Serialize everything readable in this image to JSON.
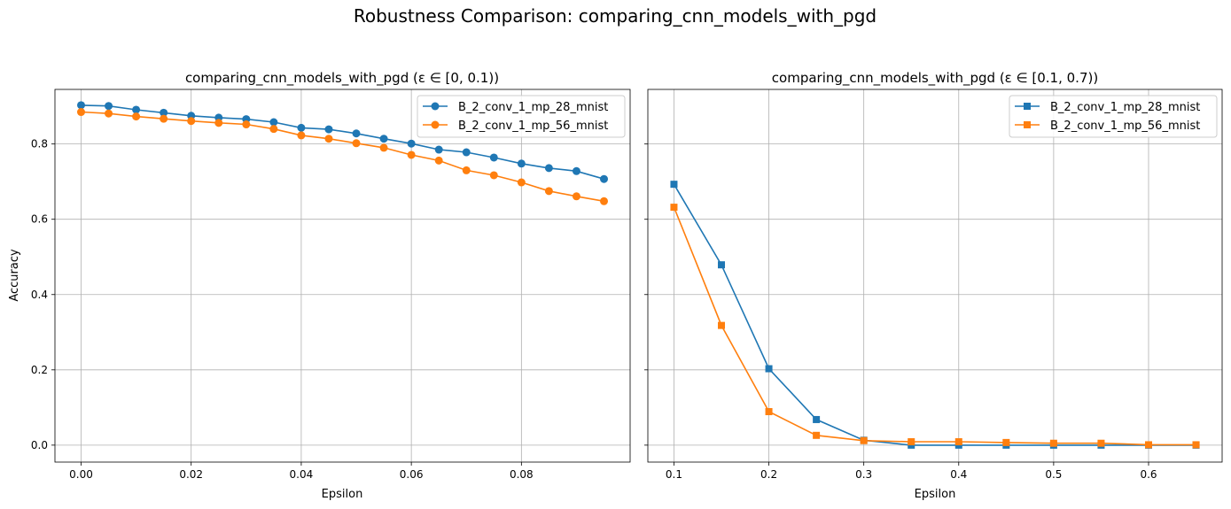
{
  "figure": {
    "title": "Robustness Comparison: comparing_cnn_models_with_pgd"
  },
  "chart_data": [
    {
      "type": "line",
      "title": "comparing_cnn_models_with_pgd (ε ∈ [0, 0.1))",
      "xlabel": "Epsilon",
      "ylabel": "Accuracy",
      "xlim": [
        -0.00475,
        0.09975
      ],
      "ylim": [
        -0.045,
        0.945
      ],
      "xticks": [
        0.0,
        0.02,
        0.04,
        0.06,
        0.08
      ],
      "xtick_labels": [
        "0.00",
        "0.02",
        "0.04",
        "0.06",
        "0.08"
      ],
      "yticks": [
        0.0,
        0.2,
        0.4,
        0.6,
        0.8
      ],
      "ytick_labels": [
        "0.0",
        "0.2",
        "0.4",
        "0.6",
        "0.8"
      ],
      "grid": true,
      "legend": "top-right",
      "marker": "circle",
      "x": [
        0.0,
        0.005,
        0.01,
        0.015,
        0.02,
        0.025,
        0.03,
        0.035,
        0.04,
        0.045,
        0.05,
        0.055,
        0.06,
        0.065,
        0.07,
        0.075,
        0.08,
        0.085,
        0.09,
        0.095
      ],
      "series": [
        {
          "name": "B_2_conv_1_mp_28_mnist",
          "color": "#1f77b4",
          "values": [
            0.903,
            0.901,
            0.891,
            0.883,
            0.875,
            0.87,
            0.866,
            0.858,
            0.843,
            0.839,
            0.828,
            0.814,
            0.801,
            0.785,
            0.778,
            0.764,
            0.748,
            0.736,
            0.728,
            0.707
          ]
        },
        {
          "name": "B_2_conv_1_mp_56_mnist",
          "color": "#ff7f0e",
          "values": [
            0.885,
            0.881,
            0.873,
            0.867,
            0.861,
            0.856,
            0.852,
            0.84,
            0.823,
            0.814,
            0.802,
            0.79,
            0.771,
            0.756,
            0.73,
            0.717,
            0.698,
            0.675,
            0.661,
            0.648
          ]
        }
      ]
    },
    {
      "type": "line",
      "title": "comparing_cnn_models_with_pgd (ε ∈ [0.1, 0.7))",
      "xlabel": "Epsilon",
      "ylabel": "",
      "xlim": [
        0.0725,
        0.6775
      ],
      "ylim": [
        -0.045,
        0.945
      ],
      "xticks": [
        0.1,
        0.2,
        0.3,
        0.4,
        0.5,
        0.6
      ],
      "xtick_labels": [
        "0.1",
        "0.2",
        "0.3",
        "0.4",
        "0.5",
        "0.6"
      ],
      "yticks": [
        0.0,
        0.2,
        0.4,
        0.6,
        0.8
      ],
      "ytick_labels": [
        "",
        "",
        "",
        "",
        ""
      ],
      "grid": true,
      "legend": "top-right",
      "marker": "square",
      "x": [
        0.1,
        0.15,
        0.2,
        0.25,
        0.3,
        0.35,
        0.4,
        0.45,
        0.5,
        0.55,
        0.6,
        0.65
      ],
      "series": [
        {
          "name": "B_2_conv_1_mp_28_mnist",
          "color": "#1f77b4",
          "values": [
            0.693,
            0.479,
            0.203,
            0.068,
            0.013,
            0.0,
            0.0,
            0.0,
            0.0,
            0.0,
            0.0,
            0.0
          ]
        },
        {
          "name": "B_2_conv_1_mp_56_mnist",
          "color": "#ff7f0e",
          "values": [
            0.632,
            0.318,
            0.089,
            0.026,
            0.012,
            0.009,
            0.009,
            0.007,
            0.005,
            0.005,
            0.001,
            0.001
          ]
        }
      ]
    }
  ]
}
